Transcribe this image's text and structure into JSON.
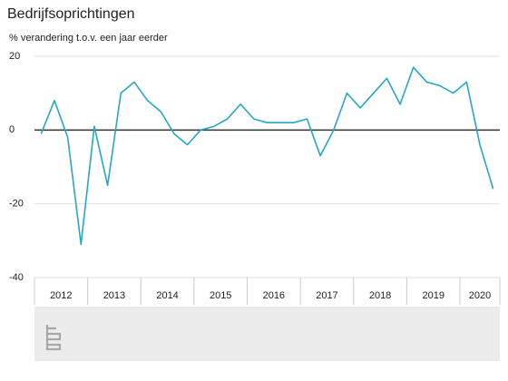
{
  "chart_data": {
    "type": "line",
    "title": "Bedrijfsoprichtingen",
    "subtitle": "% verandering t.o.v. een jaar eerder",
    "year_labels": [
      "2012",
      "2013",
      "2014",
      "2015",
      "2016",
      "2017",
      "2018",
      "2019",
      "2020"
    ],
    "categories": [
      null,
      null,
      null,
      null,
      null,
      null,
      null,
      null,
      null,
      null,
      null,
      null,
      null,
      null,
      null,
      null,
      null,
      null,
      null,
      null,
      null,
      null,
      null,
      null,
      null,
      null,
      null,
      null,
      null,
      null,
      null,
      null,
      null,
      null,
      null
    ],
    "series": [
      {
        "color": "#26a7c7",
        "values": [
          -1,
          8,
          -2,
          -31,
          1,
          -15,
          10,
          13,
          8,
          5,
          -1,
          -4,
          0,
          1,
          3,
          7,
          3,
          2,
          2,
          2,
          3,
          -7,
          0,
          10,
          6,
          10,
          14,
          7,
          17,
          13,
          12,
          10,
          13,
          -4,
          -16
        ]
      }
    ],
    "ylim": [
      -40,
      20
    ],
    "yticks": [
      20,
      0,
      -20,
      -40
    ],
    "grid": true
  }
}
